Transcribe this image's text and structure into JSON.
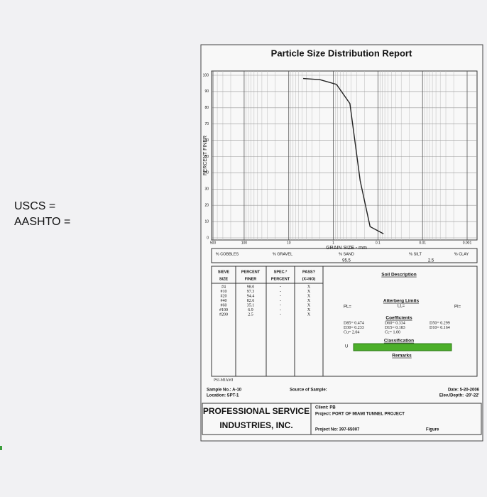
{
  "side": {
    "uscs": "USCS =",
    "aashto": "AASHTO ="
  },
  "report": {
    "title": "Particle Size Distribution Report"
  },
  "chart_data": {
    "type": "line",
    "ylabel": "PERCENT FINER",
    "xlabel": "GRAIN SIZE - mm",
    "x": [
      4.75,
      2,
      0.85,
      0.425,
      0.25,
      0.15,
      0.075
    ],
    "values": [
      98,
      97.3,
      94.4,
      82.6,
      35.1,
      6.9,
      2.5
    ],
    "color": "#222222",
    "log_x": true,
    "grid": true,
    "xlim": [
      500,
      0.001
    ],
    "ylim": [
      0,
      100
    ],
    "xticks": [
      500,
      100,
      10,
      1,
      0.1,
      0.01,
      0.001
    ],
    "yticks": [
      0,
      10,
      20,
      30,
      40,
      50,
      60,
      70,
      80,
      90,
      100
    ]
  },
  "fractions": [
    {
      "label": "% COBBLES"
    },
    {
      "label": "% GRAVEL"
    },
    {
      "label": "% SAND",
      "value": "95.5"
    },
    {
      "label": "% SILT",
      "value": "2.5"
    },
    {
      "label": "% CLAY"
    }
  ],
  "sieve_table": {
    "headers": [
      [
        "SIEVE",
        "SIZE"
      ],
      [
        "PERCENT",
        "FINER"
      ],
      [
        "SPEC.*",
        "PERCENT"
      ],
      [
        "PASS?",
        "(X=NO)"
      ]
    ],
    "rows": [
      [
        "#4",
        "98.0",
        "-",
        "X"
      ],
      [
        "#10",
        "97.3",
        "-",
        "X"
      ],
      [
        "#20",
        "94.4",
        "-",
        "X"
      ],
      [
        "#40",
        "82.6",
        "-",
        "X"
      ],
      [
        "#60",
        "35.1",
        "-",
        "X"
      ],
      [
        "#100",
        "6.9",
        "-",
        "X"
      ],
      [
        "#200",
        "2.5",
        "-",
        "X"
      ]
    ]
  },
  "soil": {
    "description": "Soil Description",
    "atterberg": "Atterberg Limits",
    "pl": "PL=",
    "ll": "LL=",
    "pi": "PI=",
    "coefficients": "Coefficients",
    "coef_cols": [
      [
        "D85= 0.474",
        "D30= 0.233",
        "Cu= 2.04"
      ],
      [
        "D60= 0.334",
        "D15= 0.183",
        "Cc= 1.00"
      ],
      [
        "D50= 0.299",
        "D10= 0.164"
      ]
    ],
    "classification": "Classification",
    "uscs_mark": "U",
    "remarks": "Remarks"
  },
  "footer": {
    "lab": "PSI-MIAMI",
    "sample_no": "Sample No.: A-10",
    "location": "Location: SPT-1",
    "source": "Source of Sample:",
    "date": "Date: 5-20-2006",
    "elev": "Elev./Depth: -20'-22'",
    "company": [
      "PROFESSIONAL SERVICE",
      "INDUSTRIES, INC."
    ],
    "client": "Client: PB",
    "project": "Project: PORT OF MIAMI TUNNEL PROJECT",
    "project_no": "Project No: 397-65007",
    "figure": "Figure"
  }
}
